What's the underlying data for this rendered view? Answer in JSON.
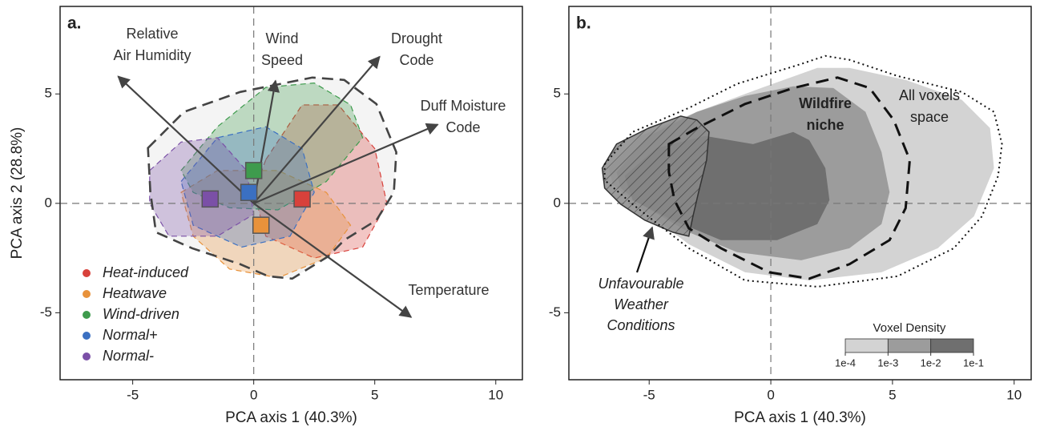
{
  "chart_data": [
    {
      "type": "biplot",
      "title": "a.",
      "x_label": "PCA axis 1 (40.3%)",
      "y_label": "PCA axis 2 (28.8%)",
      "xlim": [
        -8,
        11.1
      ],
      "ylim": [
        -8.06,
        9
      ],
      "xticks": [
        -5,
        0,
        5,
        10
      ],
      "yticks": [
        -5,
        0,
        5
      ],
      "zero_lines": true,
      "legend": "lower left",
      "niche_hull": {
        "x": [
          -4.37,
          -2.88,
          -0.56,
          2.42,
          3.74,
          5.07,
          5.89,
          5.79,
          5.07,
          3.74,
          3.08,
          1.59,
          0.6,
          -0.56,
          -2.55,
          -4.04,
          -4.27
        ],
        "y": [
          2.53,
          4.18,
          5.09,
          5.75,
          5.64,
          4.54,
          2.34,
          0.51,
          -0.77,
          -1.68,
          -2.42,
          -3.44,
          -3.33,
          -2.78,
          -2.05,
          -1.32,
          0.51
        ]
      },
      "series": [
        {
          "name": "Heat-induced",
          "color": "#d8413b",
          "cx": 2.0,
          "cy": 0.2,
          "hull_x": [
            0.5,
            2,
            3.5,
            5,
            5.5,
            4.5,
            2.5,
            0.5,
            0
          ],
          "hull_y": [
            2,
            4.5,
            4.5,
            2.5,
            0,
            -2,
            -2.5,
            -1.5,
            0.5
          ]
        },
        {
          "name": "Heatwave",
          "color": "#e8923b",
          "cx": 0.3,
          "cy": -1.0,
          "hull_x": [
            -3,
            -1.5,
            1,
            3,
            4,
            3,
            1,
            -1,
            -2.5
          ],
          "hull_y": [
            0.5,
            1.5,
            1.5,
            0.5,
            -1,
            -2.5,
            -3.4,
            -3,
            -1.5
          ]
        },
        {
          "name": "Wind-driven",
          "color": "#3e9b4d",
          "cx": 0.0,
          "cy": 1.5,
          "hull_x": [
            -3,
            -1.5,
            0.5,
            2.5,
            4,
            4.5,
            3,
            1,
            -1,
            -2.5
          ],
          "hull_y": [
            1.5,
            3.5,
            5.3,
            5.5,
            4.5,
            3,
            1,
            -0.3,
            -0.2,
            0.5
          ]
        },
        {
          "name": "Normal+",
          "color": "#3b70c2",
          "cx": -0.2,
          "cy": 0.5,
          "hull_x": [
            -3,
            -1.5,
            0.5,
            2,
            2.5,
            1.5,
            -0.5,
            -2.5
          ],
          "hull_y": [
            1,
            3,
            3.5,
            2.5,
            0.5,
            -1.5,
            -2,
            -1
          ]
        },
        {
          "name": "Normal-",
          "color": "#7b50a7",
          "cx": -1.8,
          "cy": 0.2,
          "hull_x": [
            -4.3,
            -3,
            -1.5,
            -0.3,
            0,
            -1.5,
            -3.5,
            -4.3
          ],
          "hull_y": [
            1.5,
            2.8,
            3,
            1.5,
            -0.5,
            -1.5,
            -1.5,
            0
          ]
        }
      ],
      "loadings": [
        {
          "label": [
            "Relative",
            "Air Humidity"
          ],
          "x": -5.6,
          "y": 5.8
        },
        {
          "label": [
            "Wind",
            "Speed"
          ],
          "x": 0.9,
          "y": 5.6
        },
        {
          "label": [
            "Drought",
            "Code"
          ],
          "x": 5.2,
          "y": 6.7
        },
        {
          "label": [
            "Duff Moisture",
            "Code"
          ],
          "x": 7.6,
          "y": 3.6
        },
        {
          "label": [
            "Temperature"
          ],
          "x": 6.5,
          "y": -5.2
        }
      ]
    },
    {
      "type": "density",
      "title": "b.",
      "x_label": "PCA axis 1 (40.3%)",
      "xlim": [
        -8.3,
        10.7
      ],
      "ylim": [
        -8.06,
        9
      ],
      "xticks": [
        -5,
        0,
        5,
        10
      ],
      "yticks": [
        -5,
        0,
        5
      ],
      "zero_lines": true,
      "regions": [
        {
          "color": "#d3d3d3",
          "x": [
            -6.67,
            -5.35,
            -3.04,
            -0.4,
            1.91,
            3.23,
            5.54,
            7.85,
            9.01,
            9.17,
            8.35,
            6.86,
            4.55,
            1.58,
            -1.06,
            -3.37,
            -5.35,
            -6.5
          ],
          "y": [
            1.61,
            3.08,
            4.18,
            5.27,
            6.19,
            6.19,
            5.64,
            4.73,
            3.44,
            1.61,
            -0.59,
            -2.05,
            -3.15,
            -3.52,
            -3.15,
            -1.87,
            -0.22,
            0.88
          ]
        },
        {
          "color": "#9c9c9c",
          "x": [
            -6.34,
            -5.02,
            -3.04,
            -1.06,
            0.92,
            2.57,
            3.89,
            4.55,
            4.88,
            4.55,
            3.23,
            1.25,
            -1.39,
            -3.37,
            -5.35,
            -6.17
          ],
          "y": [
            1.43,
            3.08,
            4.18,
            4.91,
            5.35,
            5.27,
            4.18,
            2.34,
            0.51,
            -0.95,
            -2.05,
            -2.6,
            -2.23,
            -1.32,
            -0.04,
            0.7
          ]
        },
        {
          "color": "#6f6f6f",
          "x": [
            -6.01,
            -4.69,
            -2.71,
            -0.73,
            0.92,
            1.58,
            2.24,
            2.41,
            1.91,
            0.26,
            -2.05,
            -4.03,
            -5.68
          ],
          "y": [
            1.25,
            2.53,
            3.08,
            2.71,
            3.26,
            2.89,
            1.61,
            0.15,
            -0.95,
            -1.68,
            -1.68,
            -0.77,
            0.15
          ]
        }
      ],
      "unfavourable": {
        "label": [
          "Unfavourable",
          "Weather",
          "Conditions"
        ],
        "x": [
          -6.93,
          -6.34,
          -5.02,
          -3.7,
          -3.04,
          -2.54,
          -2.64,
          -2.97,
          -3.2,
          -3.37,
          -4.03,
          -5.18,
          -6.17,
          -6.83
        ],
        "y": [
          1.61,
          2.71,
          3.44,
          3.99,
          3.81,
          3.26,
          1.98,
          0.51,
          -0.59,
          -1.5,
          -1.32,
          -0.77,
          -0.04,
          0.7
        ]
      },
      "hulls": [
        {
          "label": [
            "All voxels",
            "space"
          ],
          "style": "dotted",
          "x": [
            -6.83,
            -5.68,
            -3.37,
            -1.39,
            1.25,
            2.24,
            3.23,
            5.21,
            7.85,
            9.17,
            9.5,
            9.34,
            8.68,
            7.52,
            5.21,
            1.91,
            -1.06,
            -3.37,
            -5.68,
            -6.83
          ],
          "y": [
            1.79,
            3.26,
            4.36,
            5.46,
            6.37,
            6.74,
            6.56,
            5.82,
            5.09,
            4.18,
            2.71,
            1.25,
            -0.59,
            -2.05,
            -3.33,
            -3.81,
            -3.52,
            -2.05,
            -0.04,
            1.06
          ]
        },
        {
          "label": [
            "Wildfire",
            "niche"
          ],
          "style": "dashed",
          "x": [
            -4.19,
            -3.04,
            -1.06,
            0.92,
            2.74,
            4.06,
            5.05,
            5.71,
            5.54,
            4.88,
            3.23,
            1.58,
            -0.07,
            -2.05,
            -3.37,
            -3.96,
            -4.19
          ],
          "y": [
            2.71,
            3.44,
            4.54,
            5.27,
            5.75,
            5.27,
            3.81,
            1.98,
            -0.22,
            -1.68,
            -2.78,
            -3.44,
            -3.15,
            -2.05,
            -1.14,
            0.15,
            1.43
          ]
        }
      ],
      "colorbar": {
        "title": "Voxel Density",
        "colors": [
          "#d3d3d3",
          "#9c9c9c",
          "#6f6f6f"
        ],
        "ticks": [
          {
            "value": 0.0001,
            "label": "1e-4"
          },
          {
            "value": 0.001,
            "label": "1e-3"
          },
          {
            "value": 0.01,
            "label": "1e-2"
          },
          {
            "value": 0.1,
            "label": "1e-1"
          }
        ]
      }
    }
  ]
}
